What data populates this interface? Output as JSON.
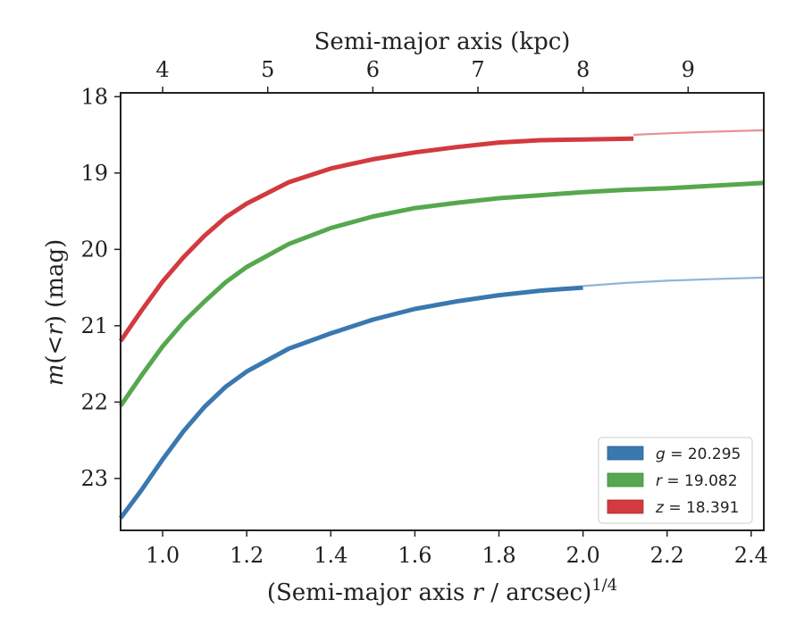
{
  "chart_data": {
    "type": "line",
    "title": "",
    "xlabel_main": "(Semi-major axis ",
    "xlabel_var": "r",
    "xlabel_rest": " / arcsec)",
    "xlabel_sup": "1/4",
    "ylabel_var1": "m",
    "ylabel_mid": "(<",
    "ylabel_var2": "r",
    "ylabel_rest": ") (mag)",
    "top_xlabel": "Semi-major axis (kpc)",
    "xlim": [
      0.9,
      2.43
    ],
    "ylim": [
      23.68,
      17.95
    ],
    "y_inverted": true,
    "xticks": [
      1.0,
      1.2,
      1.4,
      1.6,
      1.8,
      2.0,
      2.2,
      2.4
    ],
    "xtick_labels": [
      "1.0",
      "1.2",
      "1.4",
      "1.6",
      "1.8",
      "2.0",
      "2.2",
      "2.4"
    ],
    "yticks": [
      18,
      19,
      20,
      21,
      22,
      23
    ],
    "ytick_labels": [
      "18",
      "19",
      "20",
      "21",
      "22",
      "23"
    ],
    "top_ticks": [
      4,
      5,
      6,
      7,
      8,
      9
    ],
    "top_tick_labels": [
      "4",
      "5",
      "6",
      "7",
      "8",
      "9"
    ],
    "top_tick_positions_x": [
      1.0,
      1.25,
      1.5,
      1.75,
      2.0,
      2.25
    ],
    "legend_position": "lower-right",
    "grid": false,
    "series": [
      {
        "name_var": "g",
        "name_value": " = 20.295",
        "color": "#3a78b0",
        "x": [
          0.9,
          0.95,
          1.0,
          1.05,
          1.1,
          1.15,
          1.2,
          1.3,
          1.4,
          1.5,
          1.6,
          1.7,
          1.8,
          1.9,
          2.0
        ],
        "y": [
          23.52,
          23.15,
          22.75,
          22.38,
          22.06,
          21.8,
          21.6,
          21.3,
          21.1,
          20.92,
          20.78,
          20.68,
          20.6,
          20.54,
          20.5
        ],
        "model_x": [
          2.0,
          2.1,
          2.2,
          2.3,
          2.43
        ],
        "model_y": [
          20.48,
          20.44,
          20.41,
          20.39,
          20.37
        ]
      },
      {
        "name_var": "r",
        "name_value": " = 19.082",
        "color": "#56a84e",
        "x": [
          0.9,
          0.95,
          1.0,
          1.05,
          1.1,
          1.15,
          1.2,
          1.3,
          1.4,
          1.5,
          1.6,
          1.7,
          1.8,
          1.9,
          2.0,
          2.1,
          2.2,
          2.3,
          2.43
        ],
        "y": [
          22.05,
          21.65,
          21.27,
          20.95,
          20.68,
          20.43,
          20.23,
          19.93,
          19.72,
          19.57,
          19.46,
          19.39,
          19.33,
          19.29,
          19.25,
          19.22,
          19.2,
          19.17,
          19.13
        ],
        "model_x": [],
        "model_y": []
      },
      {
        "name_var": "z",
        "name_value": " = 18.391",
        "color": "#d23a3e",
        "x": [
          0.9,
          0.95,
          1.0,
          1.05,
          1.1,
          1.15,
          1.2,
          1.3,
          1.4,
          1.5,
          1.6,
          1.7,
          1.8,
          1.9,
          2.0,
          2.12
        ],
        "y": [
          21.2,
          20.8,
          20.42,
          20.1,
          19.82,
          19.58,
          19.4,
          19.12,
          18.94,
          18.82,
          18.73,
          18.66,
          18.6,
          18.57,
          18.56,
          18.55
        ],
        "model_x": [
          2.12,
          2.2,
          2.3,
          2.43
        ],
        "model_y": [
          18.5,
          18.48,
          18.46,
          18.44
        ]
      }
    ]
  }
}
